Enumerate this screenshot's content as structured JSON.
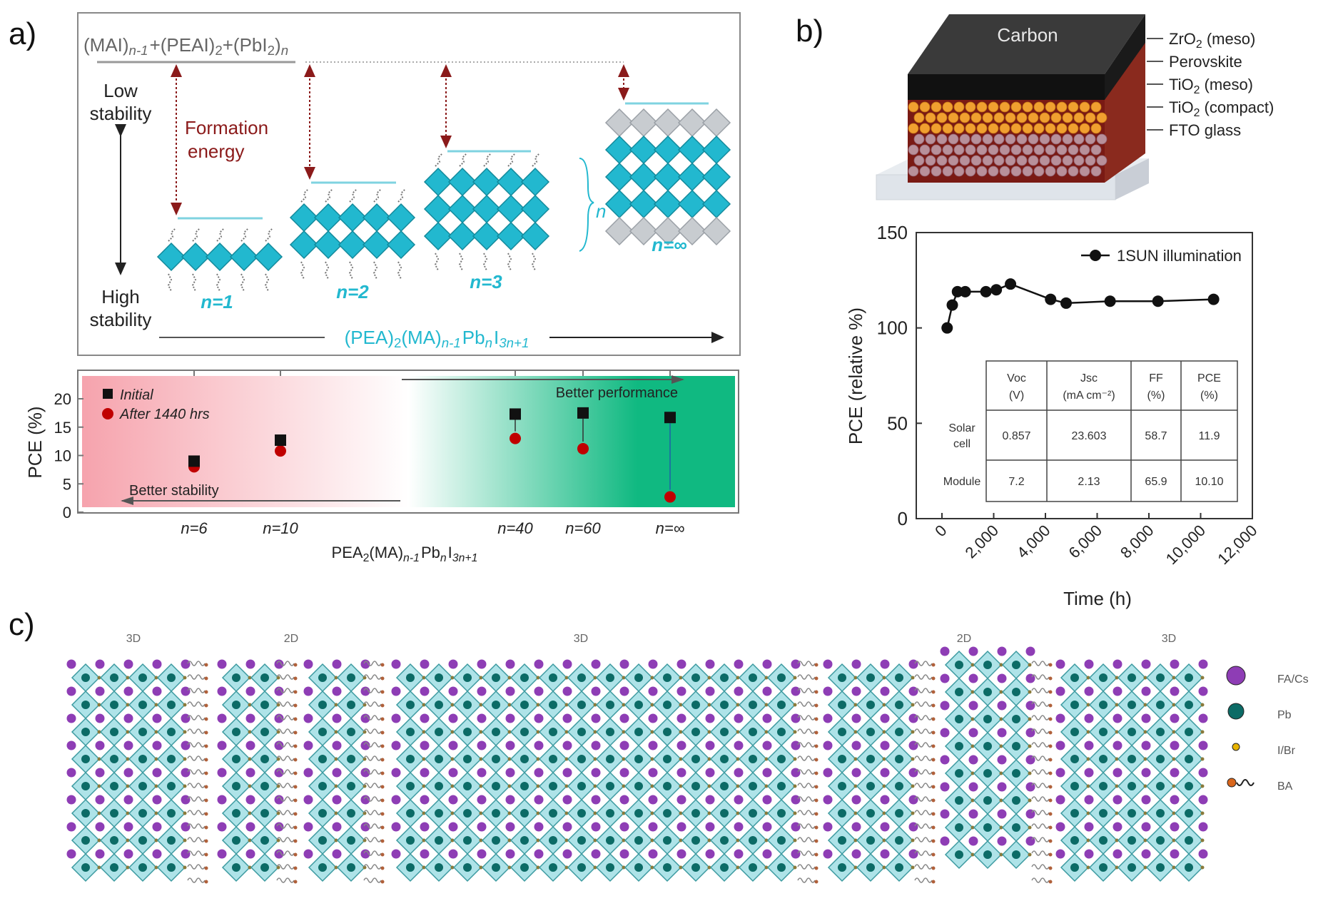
{
  "panel_labels": {
    "a": "a)",
    "b": "b)",
    "c": "c)"
  },
  "panel_a": {
    "reaction": [
      [
        "(MAI)",
        ""
      ],
      [
        "n-1",
        "sub-i"
      ],
      [
        "+(PEAI)",
        ""
      ],
      [
        "2",
        "sub"
      ],
      [
        "+(PbI",
        ""
      ],
      [
        "2",
        "sub"
      ],
      [
        ")",
        ""
      ],
      [
        "n",
        "sub-i"
      ]
    ],
    "low_stability": [
      "Low",
      "stability"
    ],
    "high_stability": [
      "High",
      "stability"
    ],
    "formation_energy": [
      "Formation",
      "energy"
    ],
    "structure_labels": [
      "n=1",
      "n=2",
      "n=3",
      "n=∞"
    ],
    "brace_label": "n",
    "formula": [
      [
        "(PEA)",
        ""
      ],
      [
        "2",
        "sub"
      ],
      [
        "(MA)",
        ""
      ],
      [
        "n-1",
        "sub-i"
      ],
      [
        "Pb",
        ""
      ],
      [
        "n",
        "sub-i"
      ],
      [
        "I",
        ""
      ],
      [
        "3n+1",
        "sub-i"
      ]
    ],
    "colors": {
      "structure": "#22b8cf",
      "formation_energy": "#8b1a1a",
      "bulk_layer": "#c8ccd0"
    }
  },
  "panel_b": {
    "device_layers": [
      "Carbon"
    ],
    "layer_callouts": [
      [
        [
          "ZrO",
          ""
        ],
        [
          "2",
          "sub"
        ],
        [
          " (meso)",
          ""
        ]
      ],
      [
        [
          "Perovskite",
          ""
        ]
      ],
      [
        [
          "TiO",
          ""
        ],
        [
          "2",
          "sub"
        ],
        [
          " (meso)",
          ""
        ]
      ],
      [
        [
          "TiO",
          ""
        ],
        [
          "2",
          "sub"
        ],
        [
          " (compact)",
          ""
        ]
      ],
      [
        [
          "FTO glass",
          ""
        ]
      ]
    ],
    "table": {
      "headers": [
        [
          "Voc",
          "(V)"
        ],
        [
          "Jsc",
          "(mA cm⁻²)"
        ],
        [
          "FF",
          "(%)"
        ],
        [
          "PCE",
          "(%)"
        ]
      ],
      "rows": [
        {
          "label": [
            "Solar",
            "cell"
          ],
          "values": [
            "0.857",
            "23.603",
            "58.7",
            "11.9"
          ]
        },
        {
          "label": [
            "Module",
            ""
          ],
          "values": [
            "7.2",
            "2.13",
            "65.9",
            "10.10"
          ]
        }
      ]
    }
  },
  "panel_c": {
    "region_labels": [
      "3D",
      "2D",
      "3D",
      "2D",
      "3D"
    ],
    "legend": [
      {
        "label": "FA/Cs",
        "color": "#8e3db5"
      },
      {
        "label": "Pb",
        "color": "#0c6b66"
      },
      {
        "label": "I/Br",
        "color": "#e8b400"
      },
      {
        "label": "BA",
        "color": "#d9661c"
      }
    ],
    "colors": {
      "octahedron": "#aee3e8",
      "octahedron_edge": "#8a7a3a"
    }
  },
  "chart_data": [
    {
      "type": "scatter",
      "title": "",
      "xlabel": [
        [
          "PEA",
          ""
        ],
        [
          "2",
          "sub"
        ],
        [
          "(MA)",
          ""
        ],
        [
          "n-1",
          "sub-i"
        ],
        [
          "Pb",
          ""
        ],
        [
          "n",
          "sub-i"
        ],
        [
          "I",
          ""
        ],
        [
          "3n+1",
          "sub-i"
        ]
      ],
      "ylabel": "PCE (%)",
      "categories": [
        "n=6",
        "n=10",
        "n=40",
        "n=60",
        "n=∞"
      ],
      "ylim": [
        0,
        24.5
      ],
      "yticks": [
        "0",
        "5",
        "10",
        "15",
        "20"
      ],
      "series": [
        {
          "name": "Initial",
          "marker": "square",
          "color": "#111111",
          "values": [
            9.0,
            12.7,
            17.3,
            17.5,
            16.7
          ]
        },
        {
          "name": "After 1440 hrs",
          "marker": "circle",
          "color": "#c00000",
          "values": [
            8.0,
            10.8,
            13.0,
            11.2,
            2.7
          ]
        }
      ],
      "annotations": [
        "Better performance",
        "Better stability"
      ],
      "background_gradient": [
        "#f6a3ad",
        "#ffffff",
        "#10b981"
      ],
      "legend": "top-left"
    },
    {
      "type": "line",
      "title": "",
      "xlabel": "Time (h)",
      "ylabel": "PCE (relative %)",
      "xlim": [
        0,
        12000
      ],
      "ylim": [
        0,
        150
      ],
      "xticks": [
        "0",
        "2,000",
        "4,000",
        "6,000",
        "8,000",
        "10,000",
        "12,000"
      ],
      "yticks": [
        "0",
        "50",
        "100",
        "150"
      ],
      "series": [
        {
          "name": "1SUN illumination",
          "x": [
            200,
            400,
            600,
            900,
            1700,
            2100,
            2650,
            4200,
            4800,
            6500,
            8350,
            10500
          ],
          "y": [
            100,
            112,
            119,
            119,
            119,
            120,
            123,
            115,
            113,
            114,
            114,
            115
          ]
        }
      ],
      "legend": "top-right"
    }
  ]
}
